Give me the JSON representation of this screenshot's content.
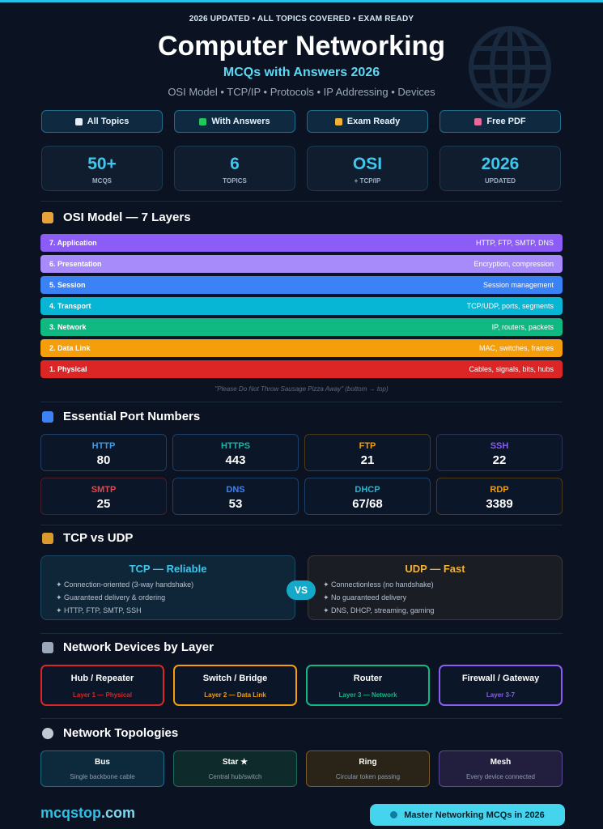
{
  "header": {
    "badge": "2026 UPDATED • ALL TOPICS COVERED • EXAM READY",
    "title": "Computer Networking",
    "subtitle": "MCQs with Answers 2026",
    "topics": "OSI Model • TCP/IP • Protocols • IP Addressing • Devices"
  },
  "pills": [
    "All Topics",
    "With Answers",
    "Exam Ready",
    "Free PDF"
  ],
  "stats": [
    {
      "value": "50+",
      "label": "MCQS"
    },
    {
      "value": 6,
      "label": "TOPICS"
    },
    {
      "value": "OSI",
      "label": "+ TCP/IP"
    },
    {
      "value": 2026,
      "label": "UPDATED"
    }
  ],
  "osi": {
    "title": "OSI Model — 7 Layers",
    "layers": [
      {
        "name": "7. Application",
        "desc": "HTTP, FTP, SMTP, DNS"
      },
      {
        "name": "6. Presentation",
        "desc": "Encryption, compression"
      },
      {
        "name": "5. Session",
        "desc": "Session management"
      },
      {
        "name": "4. Transport",
        "desc": "TCP/UDP, ports, segments"
      },
      {
        "name": "3. Network",
        "desc": "IP, routers, packets"
      },
      {
        "name": "2. Data Link",
        "desc": "MAC, switches, frames"
      },
      {
        "name": "1. Physical",
        "desc": "Cables, signals, bits, hubs"
      }
    ],
    "mnemonic": "\"Please Do Not Throw Sausage Pizza Away\" (bottom → top)"
  },
  "ports": {
    "title": "Essential Port Numbers",
    "items": [
      {
        "protocol": "HTTP",
        "port": 80
      },
      {
        "protocol": "HTTPS",
        "port": 443
      },
      {
        "protocol": "FTP",
        "port": 21
      },
      {
        "protocol": "SSH",
        "port": 22
      },
      {
        "protocol": "SMTP",
        "port": 25
      },
      {
        "protocol": "DNS",
        "port": 53
      },
      {
        "protocol": "DHCP",
        "port": "67/68"
      },
      {
        "protocol": "RDP",
        "port": 3389
      }
    ]
  },
  "tcp_udp": {
    "title": "TCP vs UDP",
    "vs": "VS",
    "cards": [
      {
        "heading": "TCP — Reliable",
        "items": [
          "✦ Connection-oriented (3-way handshake)",
          "✦ Guaranteed delivery & ordering",
          "✦ HTTP, FTP, SMTP, SSH"
        ]
      },
      {
        "heading": "UDP — Fast",
        "items": [
          "✦ Connectionless (no handshake)",
          "✦ No guaranteed delivery",
          "✦ DNS, DHCP, streaming, gaming"
        ]
      }
    ]
  },
  "devices": {
    "title": "Network Devices by Layer",
    "items": [
      {
        "name": "Hub / Repeater",
        "layer": "Layer 1 — Physical"
      },
      {
        "name": "Switch / Bridge",
        "layer": "Layer 2 — Data Link"
      },
      {
        "name": "Router",
        "layer": "Layer 3 — Network"
      },
      {
        "name": "Firewall / Gateway",
        "layer": "Layer 3-7"
      }
    ]
  },
  "topologies": {
    "title": "Network Topologies",
    "items": [
      {
        "name": "Bus",
        "desc": "Single backbone cable"
      },
      {
        "name": "Star ★",
        "desc": "Central hub/switch"
      },
      {
        "name": "Ring",
        "desc": "Circular token passing"
      },
      {
        "name": "Mesh",
        "desc": "Every device connected"
      }
    ]
  },
  "footer": {
    "brand_name": "mcqstop",
    "brand_tld": ".com",
    "cta": "Master Networking MCQs in 2026"
  }
}
